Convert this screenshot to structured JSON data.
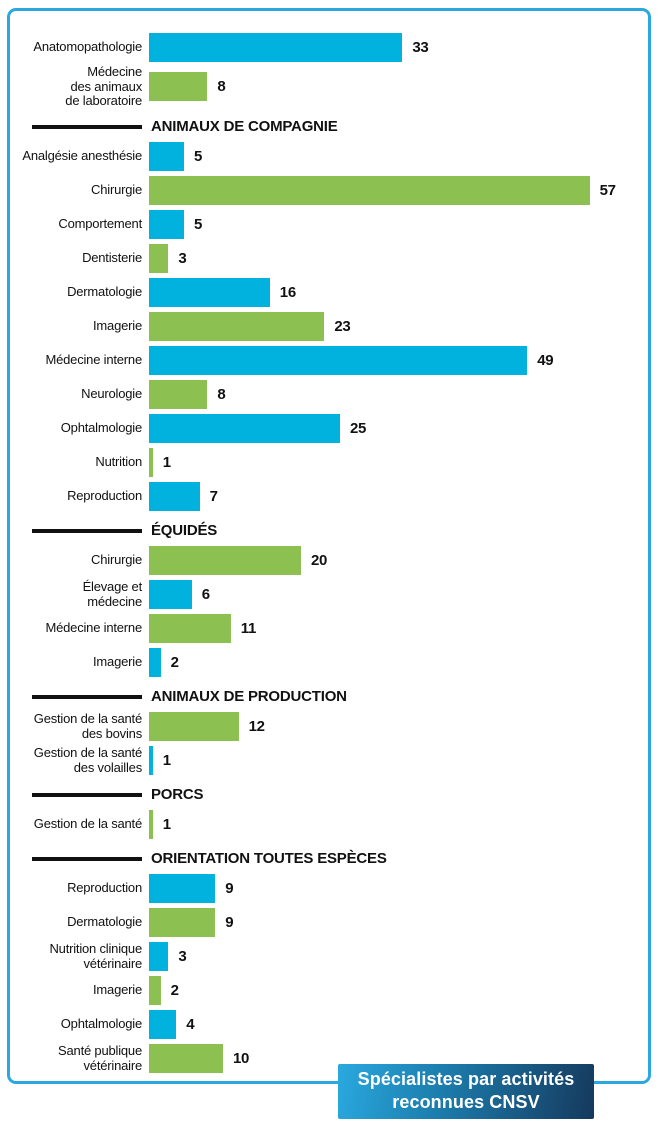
{
  "colors": {
    "blue": "#00b2dd",
    "green": "#8cc152",
    "frame_border": "#29a9e0",
    "section_line": "#111111",
    "badge_gradient_from": "#2aa9df",
    "badge_gradient_to": "#16395d",
    "text": "#111111"
  },
  "badge": {
    "text": "Spécialistes par activités reconnues CNSV"
  },
  "chart_data": {
    "type": "bar",
    "orientation": "horizontal",
    "title": "Spécialistes par activités reconnues CNSV",
    "xlabel": "",
    "ylabel": "",
    "value_max": 57,
    "legend": [],
    "grid": false,
    "bar_colors_alternate": [
      "blue",
      "green"
    ],
    "sections": [
      {
        "header": "",
        "items": [
          {
            "label": "Anatomopathologie",
            "value": 33,
            "color": "blue"
          },
          {
            "label": "Médecine\ndes animaux\nde laboratoire",
            "value": 8,
            "color": "green"
          }
        ]
      },
      {
        "header": "ANIMAUX DE COMPAGNIE",
        "items": [
          {
            "label": "Analgésie anesthésie",
            "value": 5,
            "color": "blue"
          },
          {
            "label": "Chirurgie",
            "value": 57,
            "color": "green"
          },
          {
            "label": "Comportement",
            "value": 5,
            "color": "blue"
          },
          {
            "label": "Dentisterie",
            "value": 3,
            "color": "green"
          },
          {
            "label": "Dermatologie",
            "value": 16,
            "color": "blue"
          },
          {
            "label": "Imagerie",
            "value": 23,
            "color": "green"
          },
          {
            "label": "Médecine interne",
            "value": 49,
            "color": "blue"
          },
          {
            "label": "Neurologie",
            "value": 8,
            "color": "green"
          },
          {
            "label": "Ophtalmologie",
            "value": 25,
            "color": "blue"
          },
          {
            "label": "Nutrition",
            "value": 1,
            "color": "green"
          },
          {
            "label": "Reproduction",
            "value": 7,
            "color": "blue"
          }
        ]
      },
      {
        "header": "ÉQUIDÉS",
        "items": [
          {
            "label": "Chirurgie",
            "value": 20,
            "color": "green"
          },
          {
            "label": "Élevage et\nmédecine",
            "value": 6,
            "color": "blue"
          },
          {
            "label": "Médecine interne",
            "value": 11,
            "color": "green"
          },
          {
            "label": "Imagerie",
            "value": 2,
            "color": "blue"
          }
        ]
      },
      {
        "header": "ANIMAUX DE PRODUCTION",
        "items": [
          {
            "label": "Gestion de la santé\ndes bovins",
            "value": 12,
            "color": "green"
          },
          {
            "label": "Gestion de la santé\ndes volailles",
            "value": 1,
            "color": "blue"
          }
        ]
      },
      {
        "header": "PORCS",
        "items": [
          {
            "label": "Gestion de la santé",
            "value": 1,
            "color": "green"
          }
        ]
      },
      {
        "header": "ORIENTATION TOUTES ESPÈCES",
        "items": [
          {
            "label": "Reproduction",
            "value": 9,
            "color": "blue"
          },
          {
            "label": "Dermatologie",
            "value": 9,
            "color": "green"
          },
          {
            "label": "Nutrition clinique\nvétérinaire",
            "value": 3,
            "color": "blue"
          },
          {
            "label": "Imagerie",
            "value": 2,
            "color": "green"
          },
          {
            "label": "Ophtalmologie",
            "value": 4,
            "color": "blue"
          },
          {
            "label": "Santé publique\nvétérinaire",
            "value": 10,
            "color": "green"
          }
        ]
      }
    ]
  }
}
